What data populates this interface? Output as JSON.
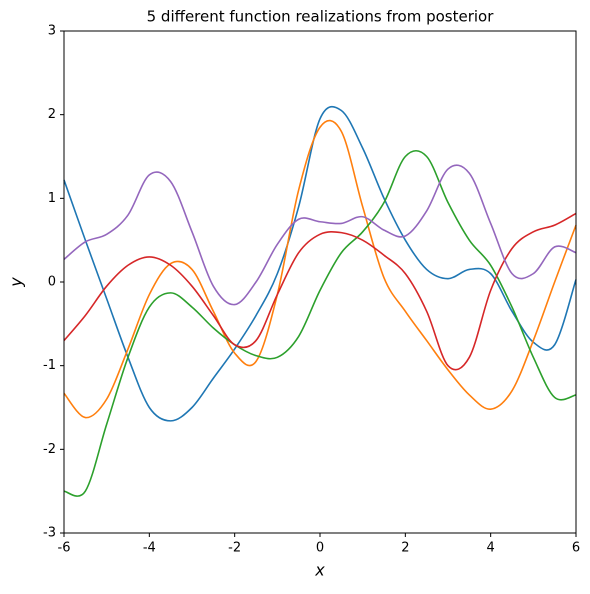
{
  "chart_data": {
    "type": "line",
    "title": "5 different function realizations from posterior",
    "x_label": "x",
    "y_label": "y",
    "x": [
      -6,
      -5.5,
      -5,
      -4.5,
      -4,
      -3.5,
      -3,
      -2.5,
      -2,
      -1.5,
      -1,
      -0.5,
      0,
      0.5,
      1,
      1.5,
      2,
      2.5,
      3,
      3.5,
      4,
      4.5,
      5,
      5.5,
      6
    ],
    "series": [
      {
        "color": "#1f77b4",
        "values": [
          1.22,
          0.5,
          -0.2,
          -0.9,
          -1.5,
          -1.66,
          -1.5,
          -1.15,
          -0.8,
          -0.4,
          0.1,
          0.9,
          1.95,
          2.05,
          1.6,
          1.0,
          0.5,
          0.15,
          0.04,
          0.15,
          0.1,
          -0.35,
          -0.72,
          -0.75,
          0.03
        ]
      },
      {
        "color": "#ff7f0e",
        "values": [
          -1.33,
          -1.62,
          -1.4,
          -0.8,
          -0.15,
          0.22,
          0.15,
          -0.35,
          -0.85,
          -0.95,
          -0.15,
          1.1,
          1.85,
          1.8,
          0.9,
          0.05,
          -0.35,
          -0.7,
          -1.05,
          -1.35,
          -1.52,
          -1.3,
          -0.7,
          0.0,
          0.68
        ]
      },
      {
        "color": "#2ca02c",
        "values": [
          -2.5,
          -2.5,
          -1.7,
          -0.9,
          -0.3,
          -0.13,
          -0.3,
          -0.55,
          -0.75,
          -0.88,
          -0.9,
          -0.65,
          -0.1,
          0.35,
          0.6,
          0.95,
          1.5,
          1.5,
          0.95,
          0.5,
          0.2,
          -0.3,
          -0.9,
          -1.38,
          -1.35
        ]
      },
      {
        "color": "#d62728",
        "values": [
          -0.7,
          -0.4,
          -0.05,
          0.2,
          0.3,
          0.2,
          -0.05,
          -0.4,
          -0.75,
          -0.7,
          -0.15,
          0.35,
          0.57,
          0.59,
          0.5,
          0.32,
          0.1,
          -0.35,
          -1.0,
          -0.9,
          -0.1,
          0.4,
          0.6,
          0.68,
          0.82
        ]
      },
      {
        "color": "#9467bd",
        "values": [
          0.27,
          0.48,
          0.57,
          0.8,
          1.28,
          1.2,
          0.6,
          -0.05,
          -0.27,
          0.0,
          0.45,
          0.75,
          0.72,
          0.7,
          0.78,
          0.62,
          0.55,
          0.85,
          1.35,
          1.3,
          0.7,
          0.1,
          0.1,
          0.42,
          0.35
        ]
      }
    ],
    "xlim": [
      -6,
      6
    ],
    "xticks": [
      -6,
      -4,
      -2,
      0,
      2,
      4,
      6
    ],
    "ylim": [
      -3,
      3
    ],
    "yticks": [
      -3,
      -2,
      -1,
      0,
      1,
      2,
      3
    ]
  }
}
